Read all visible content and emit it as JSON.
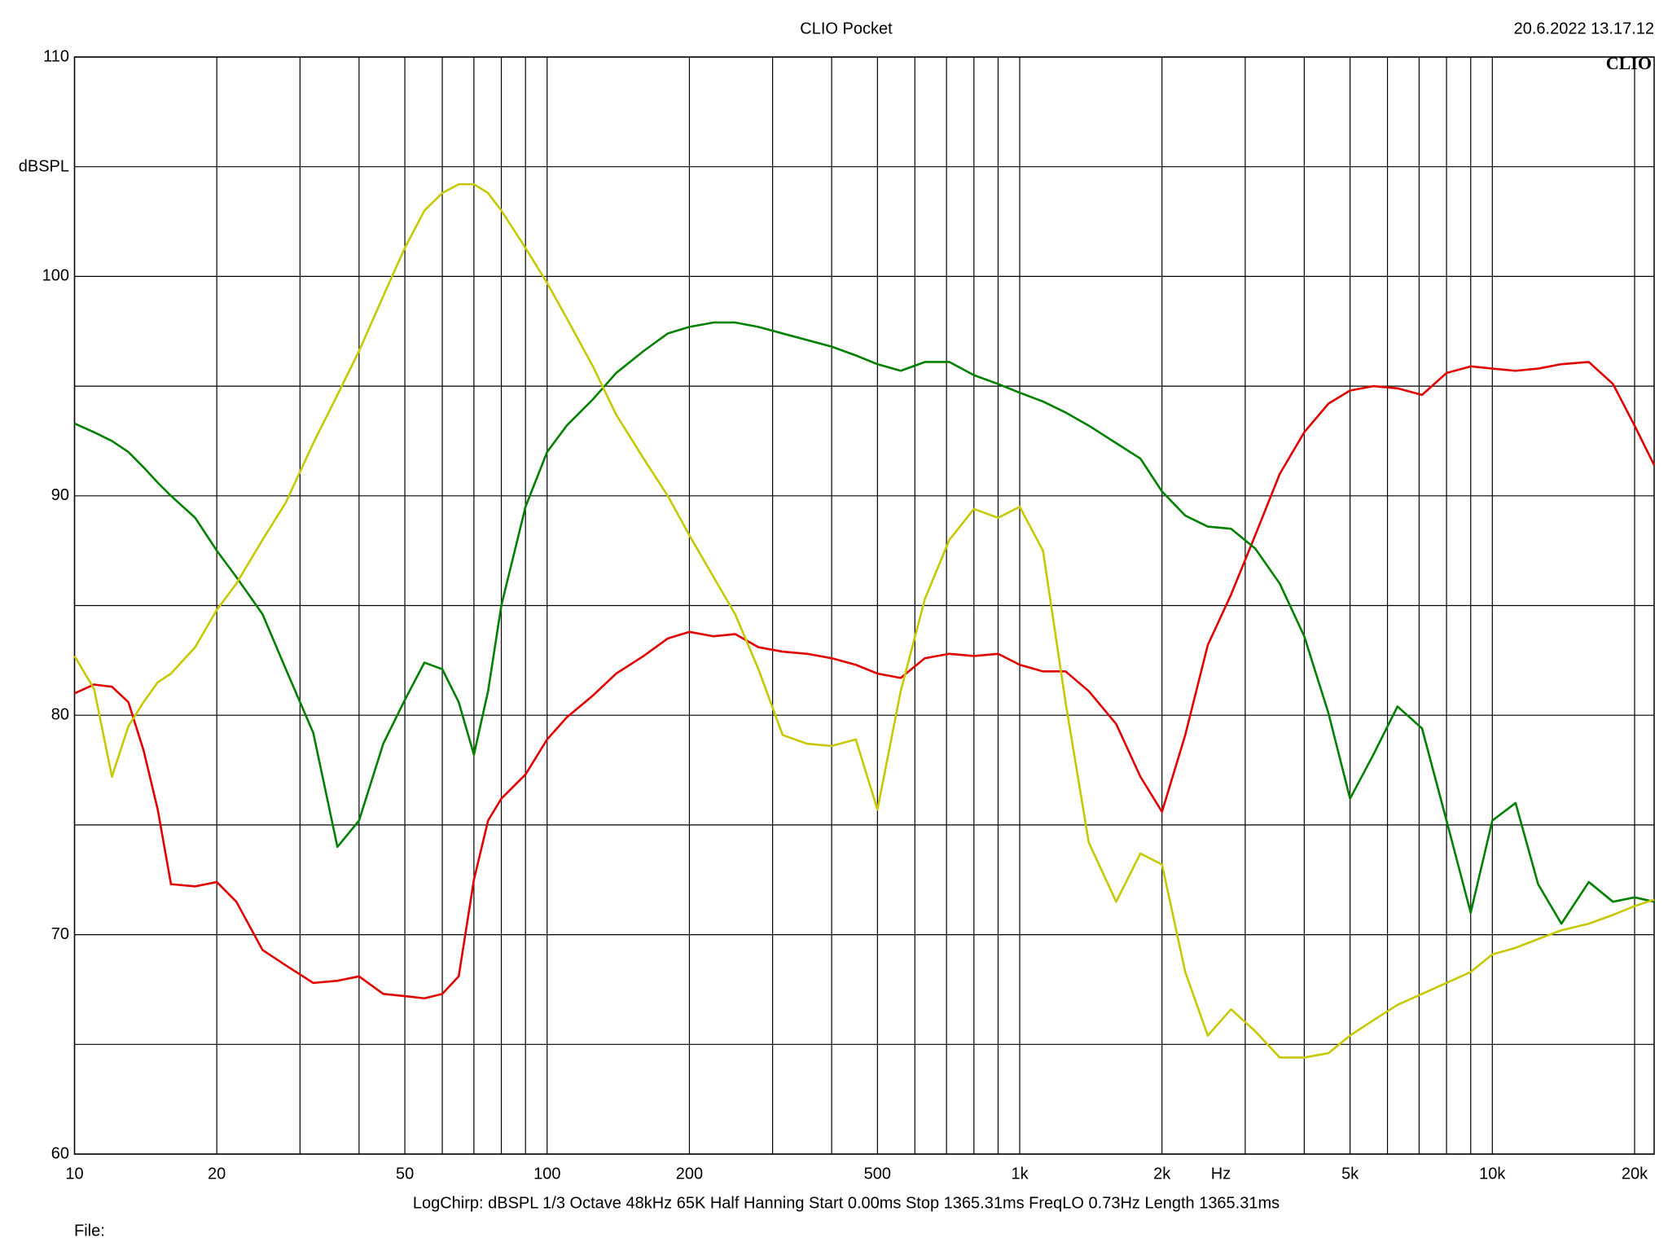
{
  "chart_data": {
    "type": "line",
    "title": "CLIO Pocket",
    "timestamp": "20.6.2022 13.17.12",
    "brand": "CLIO",
    "y_label": "dBSPL",
    "x_label": "Hz",
    "settings": "LogChirp:  dBSPL   1/3 Octave   48kHz   65K   Half Hanning   Start 0.00ms    Stop 1365.31ms    FreqLO 0.73Hz    Length 1365.31ms",
    "file_label": "File:",
    "xlog": true,
    "grid": true,
    "xlim": [
      10,
      22000
    ],
    "ylim": [
      60,
      110
    ],
    "xticks": [
      10,
      20,
      50,
      100,
      200,
      500,
      {
        "value": 1000,
        "label": "1k"
      },
      {
        "value": 2000,
        "label": "2k"
      },
      {
        "value": 5000,
        "label": "5k"
      },
      {
        "value": 10000,
        "label": "10k"
      },
      {
        "value": 20000,
        "label": "20k"
      }
    ],
    "x_minor_ticks": [
      30,
      40,
      60,
      70,
      80,
      90,
      300,
      400,
      600,
      700,
      800,
      900,
      3000,
      4000,
      6000,
      7000,
      8000,
      9000
    ],
    "yticks": [
      60,
      70,
      80,
      90,
      100,
      110
    ],
    "y_minor_ticks": [
      65,
      75,
      85,
      95,
      105
    ],
    "x": [
      10,
      11,
      12,
      13,
      14,
      15,
      16,
      18,
      20,
      22,
      25,
      28,
      32,
      36,
      40,
      45,
      50,
      55,
      60,
      65,
      70,
      75,
      80,
      90,
      100,
      110,
      125,
      140,
      160,
      180,
      200,
      225,
      250,
      280,
      315,
      355,
      400,
      450,
      500,
      560,
      630,
      710,
      800,
      900,
      1000,
      1120,
      1250,
      1400,
      1600,
      1800,
      2000,
      2240,
      2500,
      2800,
      3150,
      3550,
      4000,
      4500,
      5000,
      5600,
      6300,
      7100,
      8000,
      9000,
      10000,
      11200,
      12500,
      14000,
      16000,
      18000,
      20000,
      22000
    ],
    "series": [
      {
        "color": "#e00000",
        "values": [
          81.0,
          81.4,
          81.3,
          80.6,
          78.4,
          75.7,
          72.3,
          72.2,
          72.4,
          71.5,
          69.3,
          68.6,
          67.8,
          67.9,
          68.1,
          67.3,
          67.2,
          67.1,
          67.3,
          68.1,
          72.5,
          75.2,
          76.2,
          77.3,
          78.9,
          79.9,
          80.9,
          81.9,
          82.7,
          83.5,
          83.8,
          83.6,
          83.7,
          83.1,
          82.9,
          82.8,
          82.6,
          82.3,
          81.9,
          81.7,
          82.6,
          82.8,
          82.7,
          82.8,
          82.3,
          82.0,
          82.0,
          81.1,
          79.6,
          77.2,
          75.6,
          79.1,
          83.2,
          85.5,
          88.2,
          91.0,
          92.9,
          94.2,
          94.8,
          95.0,
          94.9,
          94.6,
          95.6,
          95.9,
          95.8,
          95.7,
          95.8,
          96.0,
          96.1,
          95.1,
          93.2,
          91.4
        ]
      },
      {
        "color": "#008000",
        "values": [
          93.3,
          92.9,
          92.5,
          92.0,
          91.3,
          90.6,
          90.0,
          89.0,
          87.5,
          86.3,
          84.6,
          82.1,
          79.2,
          74.0,
          75.2,
          78.7,
          80.7,
          82.4,
          82.1,
          80.6,
          78.2,
          81.1,
          85.0,
          89.5,
          92.0,
          93.2,
          94.4,
          95.6,
          96.6,
          97.4,
          97.7,
          97.9,
          97.9,
          97.7,
          97.4,
          97.1,
          96.8,
          96.4,
          96.0,
          95.7,
          96.1,
          96.1,
          95.5,
          95.1,
          94.7,
          94.3,
          93.8,
          93.2,
          92.4,
          91.7,
          90.2,
          89.1,
          88.6,
          88.5,
          87.6,
          86.0,
          83.6,
          80.1,
          76.2,
          78.2,
          80.4,
          79.4,
          75.2,
          71.0,
          75.2,
          76.0,
          72.3,
          70.5,
          72.4,
          71.5,
          71.7,
          71.5
        ]
      },
      {
        "color": "#c8c800",
        "values": [
          82.7,
          81.2,
          77.2,
          79.5,
          80.6,
          81.5,
          81.9,
          83.1,
          84.8,
          86.0,
          88.0,
          89.7,
          92.4,
          94.6,
          96.6,
          99.1,
          101.3,
          103.0,
          103.8,
          104.2,
          104.2,
          103.8,
          103.0,
          101.3,
          99.7,
          98.1,
          95.9,
          93.7,
          91.7,
          90.0,
          88.2,
          86.3,
          84.6,
          82.1,
          79.1,
          78.7,
          78.6,
          78.9,
          75.7,
          81.1,
          85.3,
          88.0,
          89.4,
          89.0,
          89.5,
          87.5,
          80.6,
          74.2,
          71.5,
          73.7,
          73.2,
          68.3,
          65.4,
          66.6,
          65.6,
          64.4,
          64.4,
          64.6,
          65.4,
          66.1,
          66.8,
          67.3,
          67.8,
          68.3,
          69.1,
          69.4,
          69.8,
          70.2,
          70.5,
          70.9,
          71.3,
          71.6
        ]
      }
    ]
  }
}
